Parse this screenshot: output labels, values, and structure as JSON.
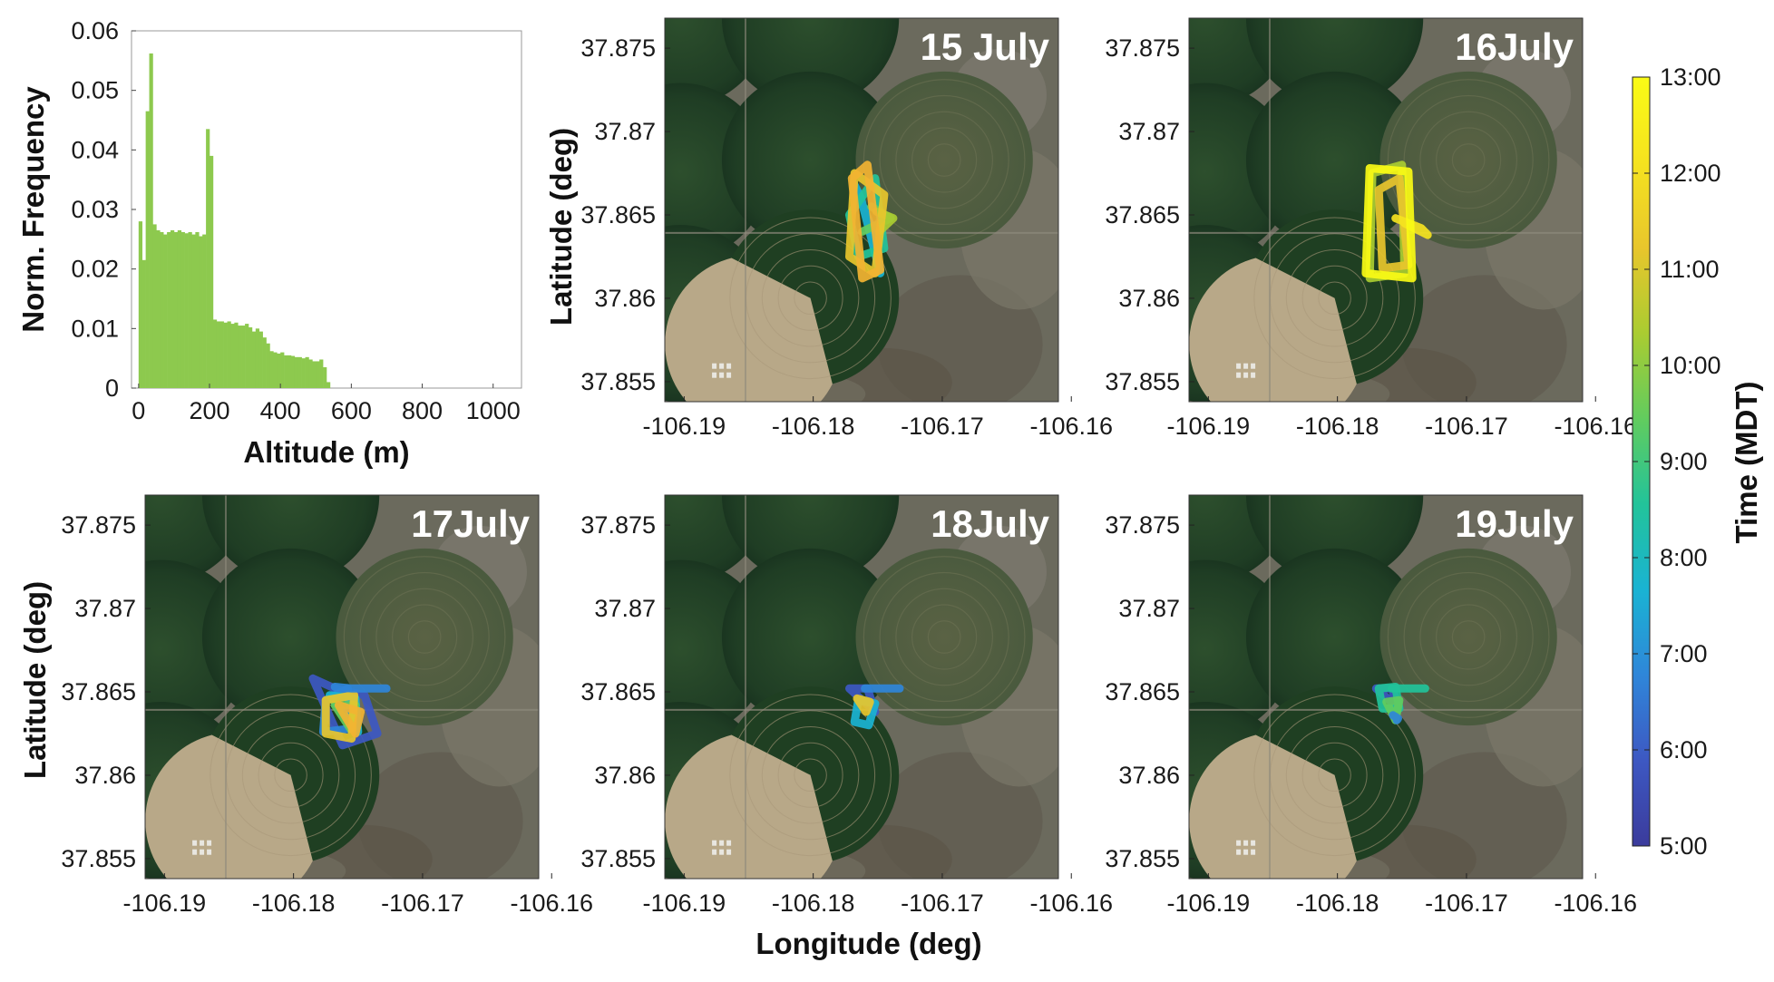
{
  "figure": {
    "colorbar": {
      "label": "Time (MDT)",
      "ticks": [
        "5:00",
        "6:00",
        "7:00",
        "8:00",
        "9:00",
        "10:00",
        "11:00",
        "12:00",
        "13:00"
      ],
      "colormap": [
        "#3b3b9c",
        "#3d58c2",
        "#2f86d9",
        "#1ab3d3",
        "#22c39a",
        "#62cc5e",
        "#aacc31",
        "#e8c62c",
        "#f5e31f",
        "#fafb15"
      ]
    },
    "shared": {
      "x_label": "Longitude (deg)",
      "y_label": "Latitude (deg)",
      "x_ticks": [
        "-106.19",
        "-106.18",
        "-106.17",
        "-106.16"
      ],
      "y_ticks": [
        "37.875",
        "37.87",
        "37.865",
        "37.86",
        "37.855"
      ]
    }
  },
  "chart_data": [
    {
      "type": "bar",
      "chart": "histogram",
      "xlabel": "Altitude (m)",
      "ylabel": "Norm. Frequency",
      "xlim": [
        -20,
        1080
      ],
      "ylim": [
        0,
        0.06
      ],
      "x_ticks": [
        "0",
        "200",
        "400",
        "600",
        "800",
        "1000"
      ],
      "y_ticks": [
        "0",
        "0.01",
        "0.02",
        "0.03",
        "0.04",
        "0.05",
        "0.06"
      ],
      "bar_color": "#8dc94e",
      "bin_width": 10,
      "bin_starts": [
        0,
        10,
        20,
        30,
        40,
        50,
        60,
        70,
        80,
        90,
        100,
        110,
        120,
        130,
        140,
        150,
        160,
        170,
        180,
        190,
        200,
        210,
        220,
        230,
        240,
        250,
        260,
        270,
        280,
        290,
        300,
        310,
        320,
        330,
        340,
        350,
        360,
        370,
        380,
        390,
        400,
        410,
        420,
        430,
        440,
        450,
        460,
        470,
        480,
        490,
        500,
        510,
        520,
        530
      ],
      "values": [
        0.028,
        0.0215,
        0.0465,
        0.0562,
        0.0275,
        0.0265,
        0.0262,
        0.0258,
        0.0262,
        0.0265,
        0.0262,
        0.0265,
        0.0262,
        0.026,
        0.0262,
        0.0258,
        0.0262,
        0.0255,
        0.0258,
        0.0435,
        0.039,
        0.0115,
        0.0112,
        0.0112,
        0.011,
        0.0112,
        0.0108,
        0.011,
        0.0105,
        0.0105,
        0.0108,
        0.0102,
        0.0095,
        0.01,
        0.0095,
        0.0085,
        0.0075,
        0.0062,
        0.006,
        0.0058,
        0.006,
        0.0055,
        0.0055,
        0.0054,
        0.0052,
        0.0052,
        0.005,
        0.0052,
        0.0048,
        0.0045,
        0.0045,
        0.0048,
        0.0035,
        0.001
      ]
    },
    {
      "type": "line",
      "title": "15 July",
      "xlim": [
        -106.1915,
        -106.161
      ],
      "ylim": [
        37.8538,
        37.8768
      ],
      "xlabel": "",
      "ylabel": "Latitude (deg)",
      "series": [
        {
          "color": "#1ab3d3",
          "x": [
            -106.1768,
            -106.1756,
            -106.1748,
            -106.1763,
            -106.1768
          ],
          "y": [
            37.8668,
            37.8645,
            37.8615,
            37.866,
            37.8668
          ]
        },
        {
          "color": "#22c39a",
          "x": [
            -106.1772,
            -106.1752,
            -106.1745,
            -106.1765,
            -106.1772
          ],
          "y": [
            37.865,
            37.8672,
            37.863,
            37.8625,
            37.865
          ]
        },
        {
          "color": "#62cc5e",
          "x": [
            -106.1755,
            -106.174,
            -106.1762
          ],
          "y": [
            37.8655,
            37.8648,
            37.864
          ]
        },
        {
          "color": "#aacc31",
          "x": [
            -106.1751,
            -106.1738,
            -106.1749
          ],
          "y": [
            37.8652,
            37.8648,
            37.864
          ]
        },
        {
          "color": "#e8c62c",
          "x": [
            -106.1768,
            -106.1745,
            -106.1752,
            -106.1772,
            -106.1768
          ],
          "y": [
            37.8675,
            37.8662,
            37.8615,
            37.8625,
            37.8675
          ]
        },
        {
          "color": "#f2b332",
          "x": [
            -106.177,
            -106.1758,
            -106.1748,
            -106.1762,
            -106.177
          ],
          "y": [
            37.8672,
            37.868,
            37.8617,
            37.8612,
            37.8672
          ]
        }
      ]
    },
    {
      "type": "line",
      "title": "16July",
      "xlim": [
        -106.1915,
        -106.161
      ],
      "ylim": [
        37.8538,
        37.8768
      ],
      "xlabel": "",
      "ylabel": "",
      "series": [
        {
          "color": "#aacc31",
          "x": [
            -106.1773,
            -106.175,
            -106.1748,
            -106.1775,
            -106.1773
          ],
          "y": [
            37.8675,
            37.868,
            37.8615,
            37.8612,
            37.8675
          ]
        },
        {
          "color": "#e8c62c",
          "x": [
            -106.1768,
            -106.1752,
            -106.1745,
            -106.1765,
            -106.1768
          ],
          "y": [
            37.8665,
            37.8672,
            37.862,
            37.8618,
            37.8665
          ]
        },
        {
          "color": "#f5e31f",
          "x": [
            -106.1755,
            -106.1735,
            -106.173,
            -106.1748
          ],
          "y": [
            37.8648,
            37.8642,
            37.8638,
            37.8645
          ]
        },
        {
          "color": "#fafb15",
          "x": [
            -106.1775,
            -106.1745,
            -106.1742,
            -106.1778,
            -106.1775
          ],
          "y": [
            37.8678,
            37.8676,
            37.8612,
            37.8615,
            37.8678
          ]
        }
      ]
    },
    {
      "type": "line",
      "title": "17July",
      "xlim": [
        -106.1915,
        -106.161
      ],
      "ylim": [
        37.8538,
        37.8768
      ],
      "xlabel": "",
      "ylabel": "Latitude (deg)",
      "series": [
        {
          "color": "#3d58c2",
          "x": [
            -106.1785,
            -106.1768,
            -106.1745,
            -106.1735,
            -106.1762,
            -106.1785
          ],
          "y": [
            37.8658,
            37.8652,
            37.8648,
            37.8625,
            37.8618,
            37.8658
          ]
        },
        {
          "color": "#2f86d9",
          "x": [
            -106.1775,
            -106.1758,
            -106.1755,
            -106.1777,
            -106.1775
          ],
          "y": [
            37.8645,
            37.8652,
            37.8628,
            37.8626,
            37.8645
          ]
        },
        {
          "color": "#1ab3d3",
          "x": [
            -106.1772,
            -106.1752,
            -106.175,
            -106.1772
          ],
          "y": [
            37.8648,
            37.8646,
            37.8626,
            37.8648
          ]
        },
        {
          "color": "#62cc5e",
          "x": [
            -106.1768,
            -106.1752,
            -106.1756,
            -106.1768
          ],
          "y": [
            37.8642,
            37.8642,
            37.8628,
            37.8642
          ]
        },
        {
          "color": "#e8c62c",
          "x": [
            -106.1775,
            -106.1753,
            -106.1755,
            -106.1775,
            -106.1775
          ],
          "y": [
            37.8645,
            37.8648,
            37.8622,
            37.8625,
            37.8645
          ]
        },
        {
          "color": "#f2b332",
          "x": [
            -106.1765,
            -106.1748,
            -106.1752,
            -106.1765
          ],
          "y": [
            37.8642,
            37.8638,
            37.8625,
            37.8642
          ]
        },
        {
          "color": "#2f86d9",
          "x": [
            -106.1768,
            -106.1755,
            -106.174,
            -106.1728
          ],
          "y": [
            37.8653,
            37.8652,
            37.8652,
            37.8652
          ]
        }
      ]
    },
    {
      "type": "line",
      "title": "18July",
      "xlim": [
        -106.1915,
        -106.161
      ],
      "ylim": [
        37.8538,
        37.8768
      ],
      "xlabel": "",
      "ylabel": "",
      "series": [
        {
          "color": "#3d58c2",
          "x": [
            -106.1772,
            -106.1758,
            -106.1752,
            -106.1772
          ],
          "y": [
            37.8652,
            37.8652,
            37.8638,
            37.8652
          ]
        },
        {
          "color": "#1ab3d3",
          "x": [
            -106.1765,
            -106.1752,
            -106.1757,
            -106.1768,
            -106.1765
          ],
          "y": [
            37.8645,
            37.8643,
            37.863,
            37.8632,
            37.8645
          ]
        },
        {
          "color": "#e8c62c",
          "x": [
            -106.1766,
            -106.1756,
            -106.1759,
            -106.1766
          ],
          "y": [
            37.8646,
            37.8644,
            37.8638,
            37.8646
          ]
        },
        {
          "color": "#2f86d9",
          "x": [
            -106.176,
            -106.175,
            -106.1741,
            -106.1733
          ],
          "y": [
            37.8652,
            37.8652,
            37.8652,
            37.8652
          ]
        }
      ]
    },
    {
      "type": "line",
      "title": "19July",
      "xlim": [
        -106.1915,
        -106.161
      ],
      "ylim": [
        37.8538,
        37.8768
      ],
      "xlabel": "",
      "ylabel": "",
      "series": [
        {
          "color": "#3d58c2",
          "x": [
            -106.177,
            -106.1758,
            -106.1752,
            -106.177
          ],
          "y": [
            37.8652,
            37.8652,
            37.864,
            37.8652
          ]
        },
        {
          "color": "#22c39a",
          "x": [
            -106.1768,
            -106.1755,
            -106.1752,
            -106.1765,
            -106.1768
          ],
          "y": [
            37.8652,
            37.8653,
            37.864,
            37.864,
            37.8652
          ]
        },
        {
          "color": "#62cc5e",
          "x": [
            -106.1762,
            -106.1752,
            -106.1755,
            -106.1762
          ],
          "y": [
            37.8644,
            37.8645,
            37.8633,
            37.8644
          ]
        },
        {
          "color": "#2f86d9",
          "x": [
            -106.1757,
            -106.1753,
            -106.1754
          ],
          "y": [
            37.8636,
            37.8634,
            37.8633
          ]
        },
        {
          "color": "#22c39a",
          "x": [
            -106.1758,
            -106.1748,
            -106.174,
            -106.1732
          ],
          "y": [
            37.8652,
            37.8652,
            37.8652,
            37.8652
          ]
        }
      ]
    }
  ]
}
